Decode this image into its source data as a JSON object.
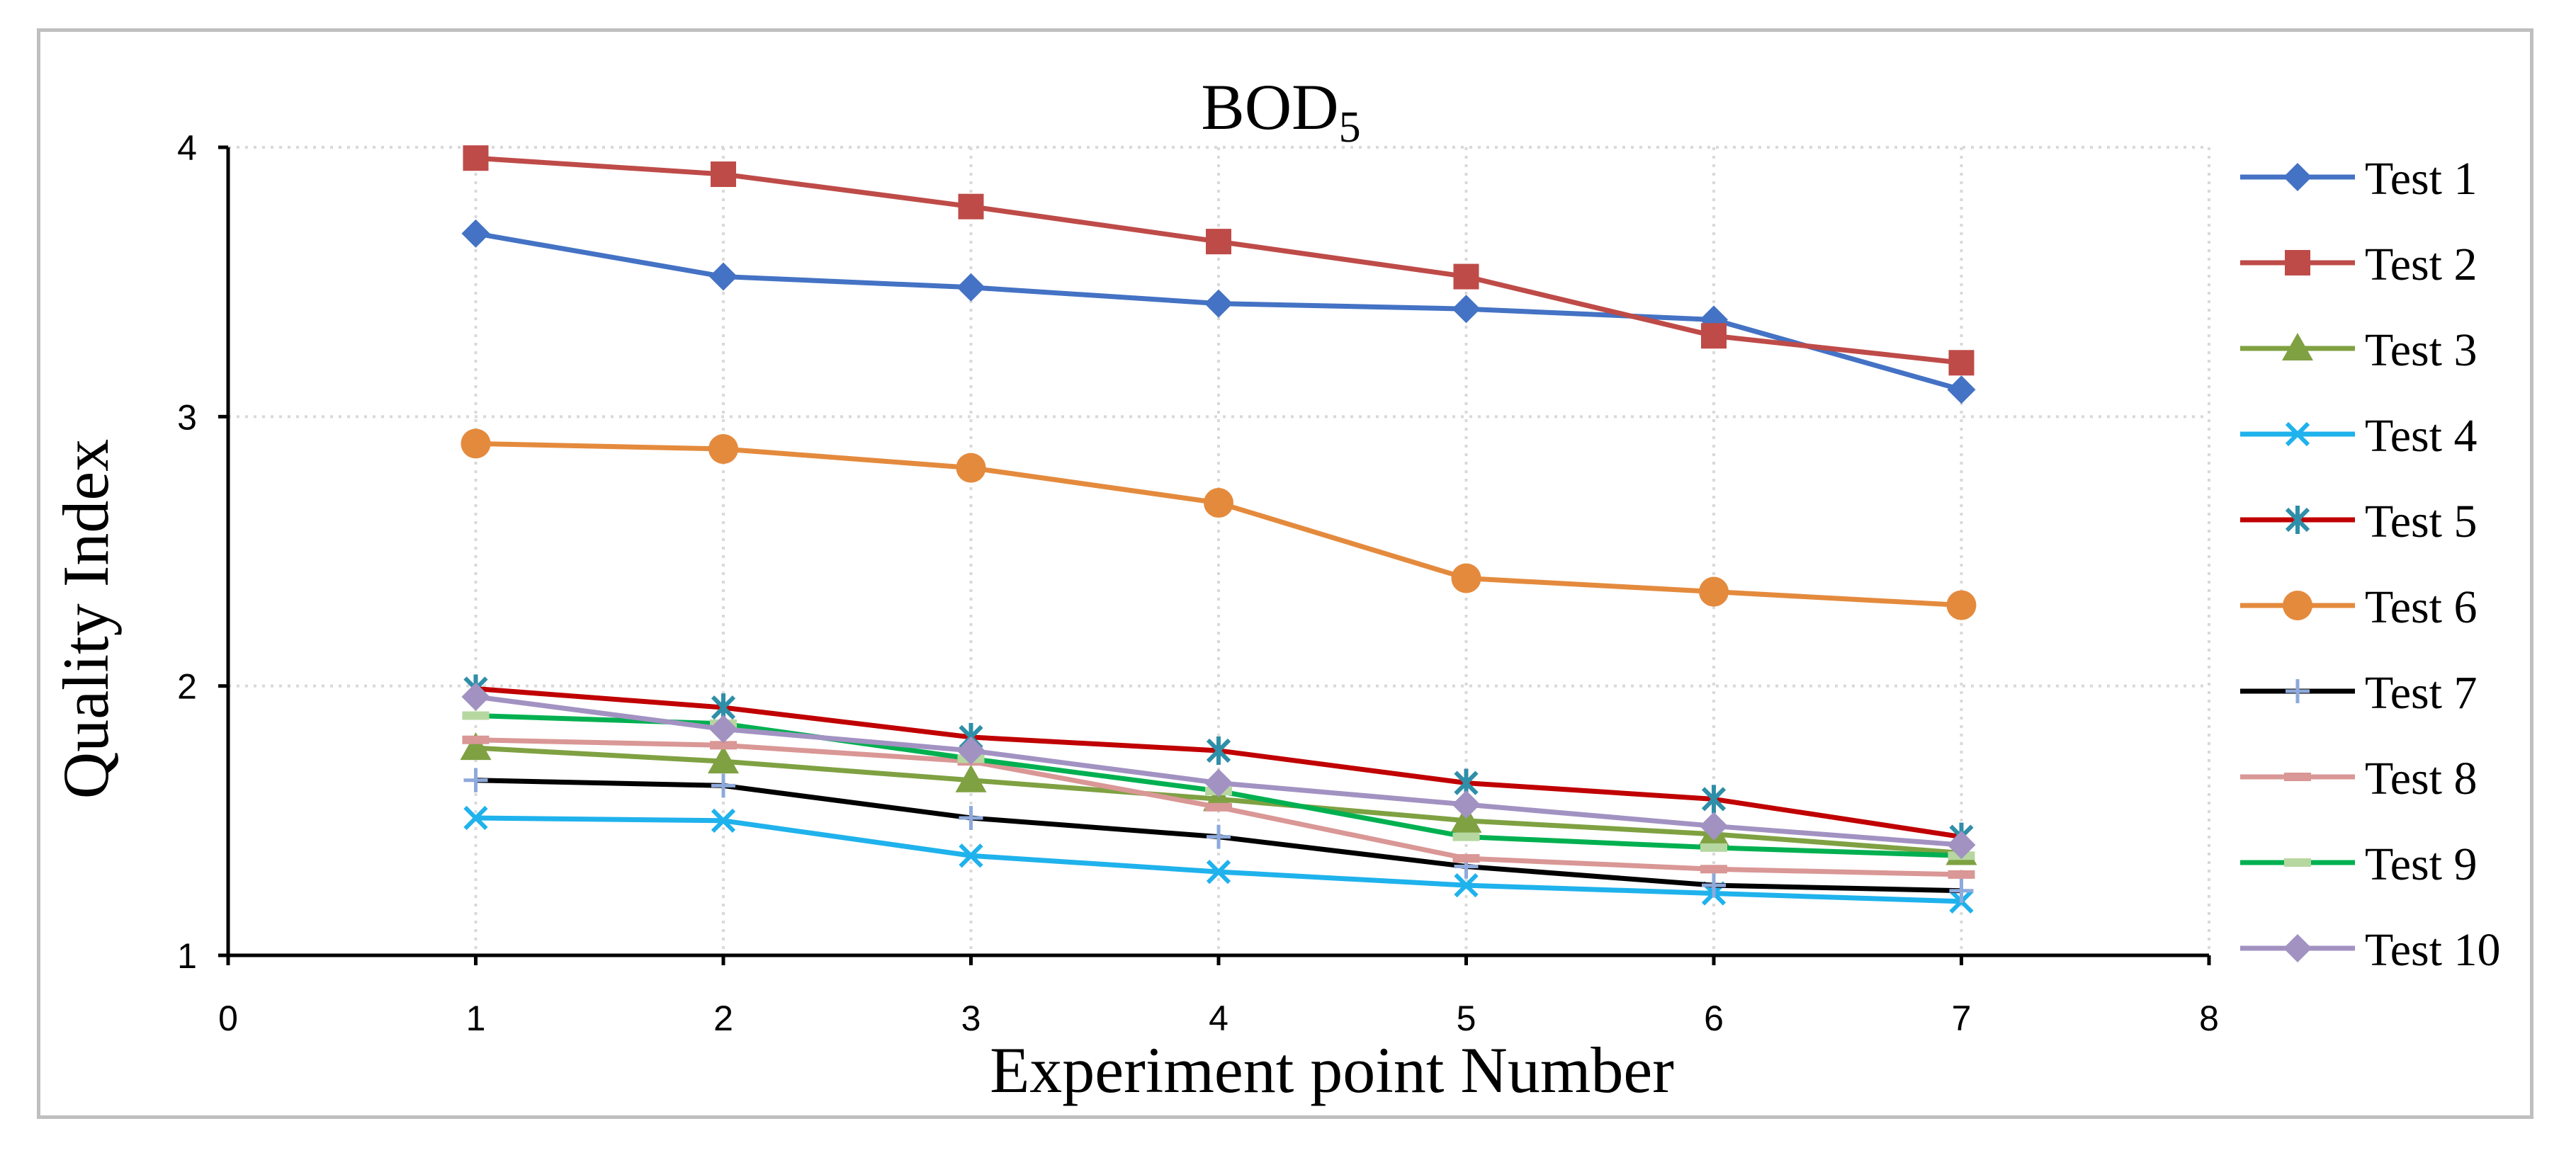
{
  "chart_data": {
    "type": "line",
    "title": "BOD",
    "title_subscript": "5",
    "xlabel": "Experiment point Number",
    "ylabel": "Quality Index",
    "xlim": [
      0,
      8
    ],
    "ylim": [
      1,
      4
    ],
    "x_ticks": [
      "0",
      "1",
      "2",
      "3",
      "4",
      "5",
      "6",
      "7",
      "8"
    ],
    "y_ticks": [
      "1",
      "2",
      "3",
      "4"
    ],
    "grid": true,
    "legend_position": "right",
    "x": [
      1,
      2,
      3,
      4,
      5,
      6,
      7
    ],
    "series": [
      {
        "name": "Test 1",
        "color": "#4472c4",
        "marker": "diamond",
        "values": [
          3.68,
          3.52,
          3.48,
          3.42,
          3.4,
          3.36,
          3.1
        ]
      },
      {
        "name": "Test 2",
        "color": "#be4b48",
        "marker": "square",
        "values": [
          3.96,
          3.9,
          3.78,
          3.65,
          3.52,
          3.3,
          3.2
        ]
      },
      {
        "name": "Test 3",
        "color": "#7fa142",
        "marker": "triangle",
        "values": [
          1.77,
          1.72,
          1.65,
          1.58,
          1.5,
          1.45,
          1.38
        ]
      },
      {
        "name": "Test 4",
        "color": "#1fb2ec",
        "marker": "x",
        "values": [
          1.51,
          1.5,
          1.37,
          1.31,
          1.26,
          1.23,
          1.2
        ]
      },
      {
        "name": "Test 5",
        "color": "#c00000",
        "marker": "asterisk",
        "markerColor": "#2f8ea8",
        "values": [
          1.99,
          1.92,
          1.81,
          1.76,
          1.64,
          1.58,
          1.44
        ]
      },
      {
        "name": "Test 6",
        "color": "#e48a3d",
        "marker": "circle",
        "values": [
          2.9,
          2.88,
          2.81,
          2.68,
          2.4,
          2.35,
          2.3
        ]
      },
      {
        "name": "Test 7",
        "color": "#000000",
        "marker": "plus",
        "markerColor": "#8ea9db",
        "values": [
          1.65,
          1.63,
          1.51,
          1.44,
          1.33,
          1.26,
          1.24
        ]
      },
      {
        "name": "Test 8",
        "color": "#d99795",
        "marker": "dash",
        "values": [
          1.8,
          1.78,
          1.72,
          1.55,
          1.36,
          1.32,
          1.3
        ]
      },
      {
        "name": "Test 9",
        "color": "#00b050",
        "marker": "dash",
        "markerColor": "#b7d7a0",
        "values": [
          1.89,
          1.86,
          1.73,
          1.61,
          1.44,
          1.4,
          1.37
        ]
      },
      {
        "name": "Test 10",
        "color": "#a292c2",
        "marker": "diamond",
        "values": [
          1.96,
          1.84,
          1.76,
          1.64,
          1.56,
          1.48,
          1.41
        ]
      }
    ]
  }
}
